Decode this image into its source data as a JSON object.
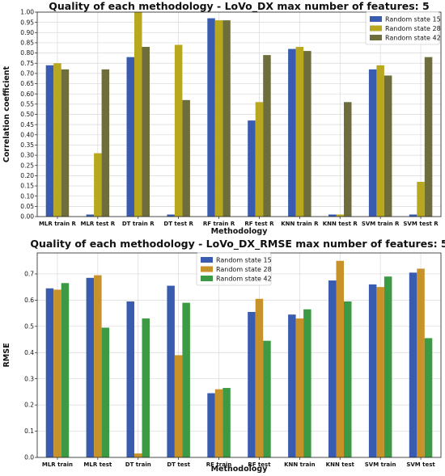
{
  "chart_data": [
    {
      "type": "bar",
      "title": "Quality of each methodology - LoVo_DX max number of features: 5",
      "xlabel": "Methodology",
      "ylabel": "Correlation coefficient",
      "ylim": [
        0,
        1.0
      ],
      "yticks": [
        "0.00",
        "0.05",
        "0.10",
        "0.15",
        "0.20",
        "0.25",
        "0.30",
        "0.35",
        "0.40",
        "0.45",
        "0.50",
        "0.55",
        "0.60",
        "0.65",
        "0.70",
        "0.75",
        "0.80",
        "0.85",
        "0.90",
        "0.95",
        "1.00"
      ],
      "grid": true,
      "legend_position": "top-right",
      "categories": [
        "MLR train R",
        "MLR test R",
        "DT train R",
        "DT test R",
        "RF train R",
        "RF test R",
        "KNN train R",
        "KNN test R",
        "SVM train R",
        "SVM test R"
      ],
      "series": [
        {
          "name": "Random state 15",
          "color": "#3a5cb0",
          "values": [
            0.74,
            0.01,
            0.78,
            0.01,
            0.97,
            0.47,
            0.82,
            0.01,
            0.72,
            0.01
          ]
        },
        {
          "name": "Random state 28",
          "color": "#b8a820",
          "values": [
            0.75,
            0.31,
            1.0,
            0.84,
            0.96,
            0.56,
            0.83,
            0.01,
            0.74,
            0.17
          ]
        },
        {
          "name": "Random state 42",
          "color": "#6e6e3c",
          "values": [
            0.72,
            0.72,
            0.83,
            0.57,
            0.96,
            0.79,
            0.81,
            0.56,
            0.69,
            0.78
          ]
        }
      ]
    },
    {
      "type": "bar",
      "title": "Quality of each methodology - LoVo_DX_RMSE max number of features: 5",
      "xlabel": "Methodology",
      "ylabel": "RMSE",
      "ylim": [
        0,
        0.78
      ],
      "yticks": [
        "0.0",
        "0.1",
        "0.2",
        "0.3",
        "0.4",
        "0.5",
        "0.6",
        "0.7"
      ],
      "grid": true,
      "legend_position": "top-center",
      "categories": [
        "MLR train",
        "MLR test",
        "DT train",
        "DT test",
        "RF train",
        "RF test",
        "KNN train",
        "KNN test",
        "SVM train",
        "SVM test"
      ],
      "series": [
        {
          "name": "Random state 15",
          "color": "#3a5cb0",
          "values": [
            0.645,
            0.685,
            0.595,
            0.655,
            0.245,
            0.555,
            0.545,
            0.675,
            0.66,
            0.705
          ]
        },
        {
          "name": "Random state 28",
          "color": "#c8922a",
          "values": [
            0.64,
            0.695,
            0.015,
            0.39,
            0.26,
            0.605,
            0.53,
            0.75,
            0.65,
            0.72
          ]
        },
        {
          "name": "Random state 42",
          "color": "#3c9a44",
          "values": [
            0.665,
            0.495,
            0.53,
            0.59,
            0.265,
            0.445,
            0.565,
            0.595,
            0.69,
            0.455
          ]
        }
      ]
    }
  ]
}
